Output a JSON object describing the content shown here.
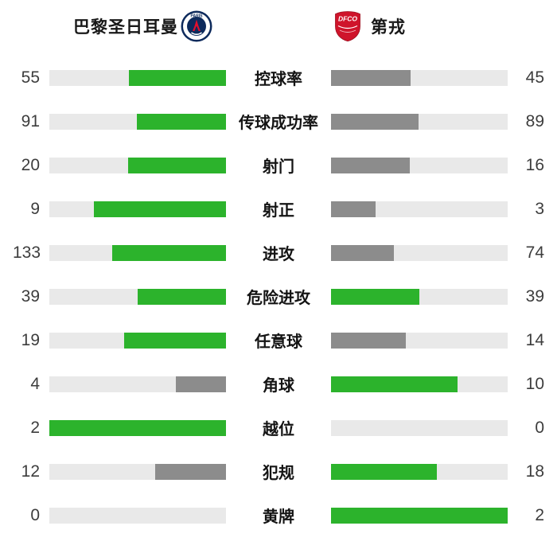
{
  "header": {
    "home_team": "巴黎圣日耳曼",
    "away_team": "第戎",
    "home_crest": "psg-crest",
    "away_crest": "dfco-crest",
    "home_crest_text": "PARIS",
    "away_crest_text": "DFCO"
  },
  "colors": {
    "leading": "#2cb32c",
    "trailing": "#8c8c8c",
    "track": "#e9e9e9",
    "psg_navy": "#0d2a5c",
    "psg_red": "#e30f2d",
    "dfco_red": "#cf142b"
  },
  "chart_data": {
    "type": "bar",
    "title": "",
    "orientation": "mirrored-horizontal",
    "categories": [
      "控球率",
      "传球成功率",
      "射门",
      "射正",
      "进攻",
      "危险进攻",
      "任意球",
      "角球",
      "越位",
      "犯规",
      "黄牌"
    ],
    "series": [
      {
        "name": "巴黎圣日耳曼",
        "values": [
          55,
          91,
          20,
          9,
          133,
          39,
          19,
          4,
          2,
          12,
          0
        ]
      },
      {
        "name": "第戎",
        "values": [
          45,
          89,
          16,
          3,
          74,
          39,
          14,
          10,
          0,
          18,
          2
        ]
      }
    ],
    "legend_position": "top",
    "grid": false,
    "bar_rule": "fill width = value/(home+away); green when value >= opponent, gray otherwise"
  }
}
